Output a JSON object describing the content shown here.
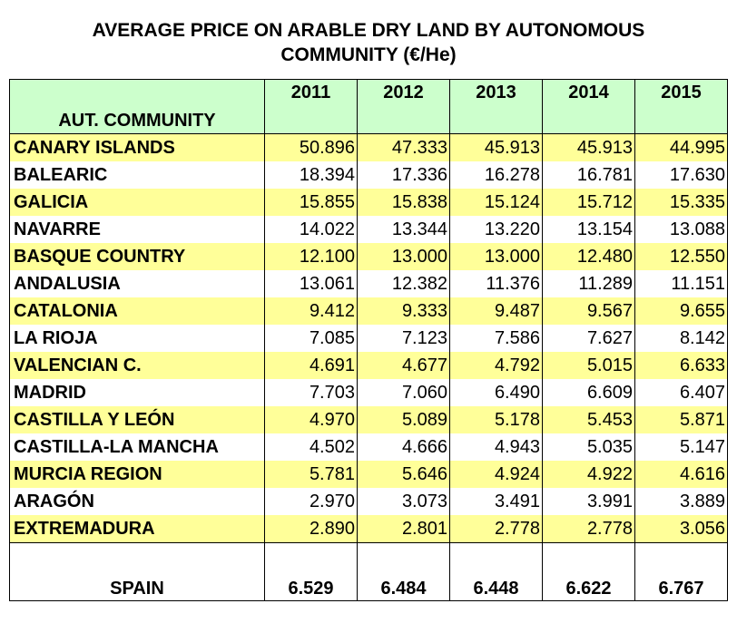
{
  "chart_data": {
    "type": "table",
    "title_line1": "AVERAGE PRICE ON ARABLE DRY LAND BY AUTONOMOUS",
    "title_line2": "COMMUNITY (€/He)",
    "header": {
      "name": "AUT. COMMUNITY",
      "years": [
        "2011",
        "2012",
        "2013",
        "2014",
        "2015"
      ]
    },
    "rows": [
      {
        "name": "CANARY ISLANDS",
        "values": [
          "50.896",
          "47.333",
          "45.913",
          "45.913",
          "44.995"
        ]
      },
      {
        "name": "BALEARIC",
        "values": [
          "18.394",
          "17.336",
          "16.278",
          "16.781",
          "17.630"
        ]
      },
      {
        "name": "GALICIA",
        "values": [
          "15.855",
          "15.838",
          "15.124",
          "15.712",
          "15.335"
        ]
      },
      {
        "name": "NAVARRE",
        "values": [
          "14.022",
          "13.344",
          "13.220",
          "13.154",
          "13.088"
        ]
      },
      {
        "name": "BASQUE COUNTRY",
        "values": [
          "12.100",
          "13.000",
          "13.000",
          "12.480",
          "12.550"
        ]
      },
      {
        "name": "ANDALUSIA",
        "values": [
          "13.061",
          "12.382",
          "11.376",
          "11.289",
          "11.151"
        ]
      },
      {
        "name": "CATALONIA",
        "values": [
          "9.412",
          "9.333",
          "9.487",
          "9.567",
          "9.655"
        ]
      },
      {
        "name": "LA RIOJA",
        "values": [
          "7.085",
          "7.123",
          "7.586",
          "7.627",
          "8.142"
        ]
      },
      {
        "name": "VALENCIAN C.",
        "values": [
          "4.691",
          "4.677",
          "4.792",
          "5.015",
          "6.633"
        ]
      },
      {
        "name": "MADRID",
        "values": [
          "7.703",
          "7.060",
          "6.490",
          "6.609",
          "6.407"
        ]
      },
      {
        "name": "CASTILLA Y LEÓN",
        "values": [
          "4.970",
          "5.089",
          "5.178",
          "5.453",
          "5.871"
        ]
      },
      {
        "name": "CASTILLA-LA MANCHA",
        "values": [
          "4.502",
          "4.666",
          "4.943",
          "5.035",
          "5.147"
        ]
      },
      {
        "name": "MURCIA REGION",
        "values": [
          "5.781",
          "5.646",
          "4.924",
          "4.922",
          "4.616"
        ]
      },
      {
        "name": "ARAGÓN",
        "values": [
          "2.970",
          "3.073",
          "3.491",
          "3.991",
          "3.889"
        ]
      },
      {
        "name": "EXTREMADURA",
        "values": [
          "2.890",
          "2.801",
          "2.778",
          "2.778",
          "3.056"
        ]
      }
    ],
    "total": {
      "name": "SPAIN",
      "values": [
        "6.529",
        "6.484",
        "6.448",
        "6.622",
        "6.767"
      ]
    },
    "colors": {
      "header_bg": "#ccffcc",
      "highlight_row_bg": "#ffff99",
      "plain_row_bg": "#ffffff"
    }
  }
}
